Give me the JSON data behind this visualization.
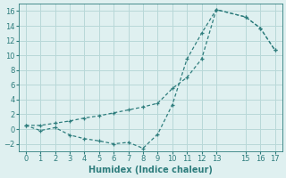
{
  "xlabel": "Humidex (Indice chaleur)",
  "bg_color": "#dff0f0",
  "grid_color": "#b8d8d8",
  "line_color": "#2e7d7d",
  "line1_x": [
    0,
    1,
    2,
    3,
    4,
    5,
    6,
    7,
    8,
    9,
    10,
    11,
    12,
    13,
    15,
    16,
    17
  ],
  "line1_y": [
    0.5,
    -0.2,
    0.2,
    -0.8,
    -1.3,
    -1.6,
    -2.0,
    -1.8,
    -2.6,
    -0.7,
    3.3,
    9.5,
    13.0,
    16.2,
    15.2,
    13.7,
    10.7
  ],
  "line2_x": [
    0,
    1,
    2,
    3,
    4,
    5,
    6,
    7,
    8,
    9,
    10,
    11,
    12,
    13,
    15,
    16,
    17
  ],
  "line2_y": [
    0.5,
    0.5,
    0.8,
    1.1,
    1.5,
    1.8,
    2.2,
    2.6,
    3.0,
    3.5,
    5.5,
    7.0,
    9.5,
    16.2,
    15.2,
    13.7,
    10.7
  ],
  "xlim": [
    -0.5,
    17.5
  ],
  "ylim": [
    -3,
    17
  ],
  "xticks": [
    0,
    1,
    2,
    3,
    4,
    5,
    6,
    7,
    8,
    9,
    10,
    11,
    12,
    13,
    15,
    16,
    17
  ],
  "yticks": [
    -2,
    0,
    2,
    4,
    6,
    8,
    10,
    12,
    14,
    16
  ],
  "fontsize_label": 7,
  "fontsize_tick": 6
}
